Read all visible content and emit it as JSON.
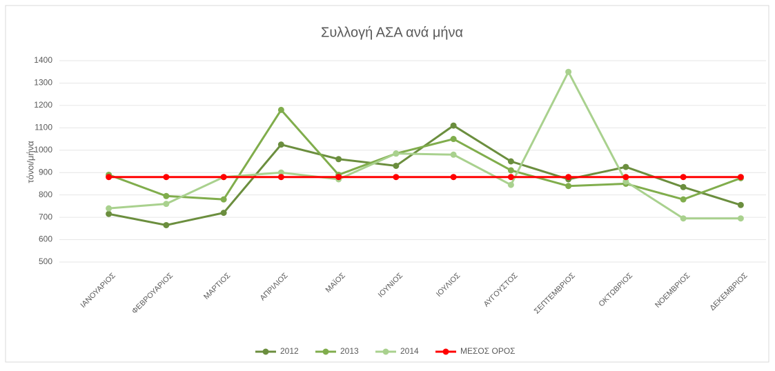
{
  "chart_data": {
    "type": "line",
    "title": "Συλλογή ΑΣΑ ανά μήνα",
    "y_label": "τόνοι/μήνα",
    "categories": [
      "ΙΑΝΟΥΑΡΙΟΣ",
      "ΦΕΒΡΟΥΑΡΙΟΣ",
      "ΜΑΡΤΙΟΣ",
      "ΑΠΡΙΛΙΟΣ",
      "ΜΑΪΟΣ",
      "ΙΟΥΝΙΟΣ",
      "ΙΟΥΛΙΟΣ",
      "ΑΥΓΟΥΣΤΟΣ",
      "ΣΕΠΤΕΜΒΡΙΟΣ",
      "ΟΚΤΩΒΡΙΟΣ",
      "ΝΟΕΜΒΡΙΟΣ",
      "ΔΕΚΕΜΒΡΙΟΣ"
    ],
    "series": [
      {
        "name": "2012",
        "color": "#6b8e3e",
        "values": [
          715,
          665,
          720,
          1025,
          960,
          930,
          1110,
          950,
          870,
          925,
          835,
          755
        ]
      },
      {
        "name": "2013",
        "color": "#80ad4c",
        "values": [
          890,
          795,
          780,
          1180,
          890,
          985,
          1050,
          910,
          840,
          850,
          780,
          875
        ]
      },
      {
        "name": "2014",
        "color": "#a9d18e",
        "values": [
          740,
          760,
          880,
          900,
          870,
          985,
          980,
          845,
          1350,
          860,
          695,
          695
        ]
      },
      {
        "name": "ΜΕΣΟΣ ΟΡΟΣ",
        "color": "#ff0000",
        "values": [
          880,
          880,
          880,
          880,
          880,
          880,
          880,
          880,
          880,
          880,
          880,
          880
        ]
      }
    ],
    "ylim": [
      500,
      1400
    ],
    "yticks": [
      500,
      600,
      700,
      800,
      900,
      1000,
      1100,
      1200,
      1300,
      1400
    ],
    "grid": true,
    "legend": "bottom"
  }
}
